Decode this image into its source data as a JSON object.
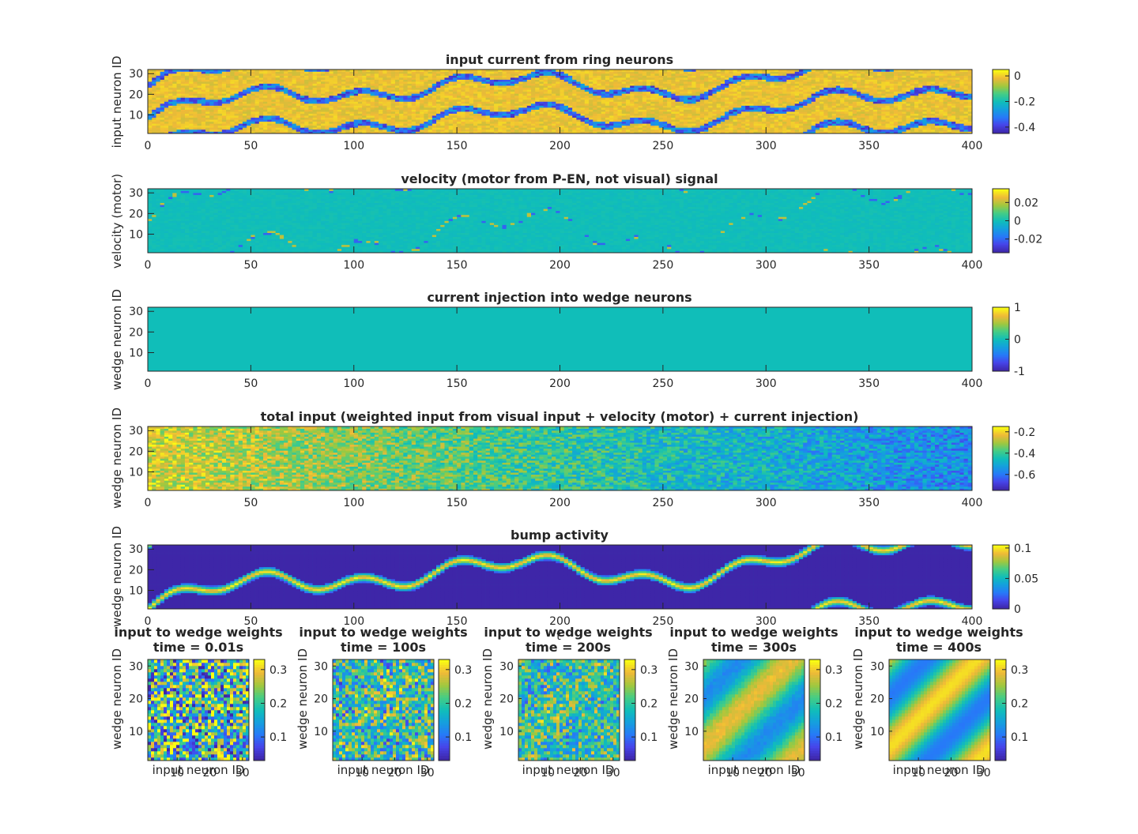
{
  "figure": {
    "ticks_x_long": [
      "0",
      "50",
      "100",
      "150",
      "200",
      "250",
      "300",
      "350",
      "400"
    ],
    "ticks_y_long": [
      "10",
      "20",
      "30"
    ],
    "ticks_small": [
      "10",
      "20",
      "30"
    ],
    "stray_label": "t"
  },
  "chart_data": [
    {
      "type": "heatmap",
      "title": "input current from ring neurons",
      "ylabel": "input neuron ID",
      "xlim": [
        0,
        400
      ],
      "ylim": [
        1,
        32
      ],
      "colorbar": {
        "ticks": [
          "0",
          "-0.2",
          "-0.4"
        ],
        "tick_values": [
          0,
          -0.2,
          -0.4
        ],
        "range": [
          -0.45,
          0.05
        ]
      },
      "pattern": "stripes",
      "low_color": "#3a4fe0",
      "high_color": "#f2c423"
    },
    {
      "type": "heatmap",
      "title": "velocity (motor from P-EN, not visual) signal",
      "ylabel": "velocity (motor)",
      "xlim": [
        0,
        400
      ],
      "ylim": [
        1,
        32
      ],
      "colorbar": {
        "ticks": [
          "0.02",
          "0",
          "-0.02"
        ],
        "tick_values": [
          0.02,
          0,
          -0.02
        ],
        "range": [
          -0.035,
          0.035
        ]
      },
      "pattern": "sparse",
      "base_color": "#12bcbc"
    },
    {
      "type": "heatmap",
      "title": "current injection into wedge neurons",
      "ylabel": "wedge neuron ID",
      "xlim": [
        0,
        400
      ],
      "ylim": [
        1,
        32
      ],
      "colorbar": {
        "ticks": [
          "1",
          "0",
          "-1"
        ],
        "tick_values": [
          1,
          0,
          -1
        ],
        "range": [
          -1,
          1
        ]
      },
      "pattern": "uniform",
      "base_color": "#13bcb8"
    },
    {
      "type": "heatmap",
      "title": "total input (weighted input from visual input + velocity (motor) + current injection)",
      "ylabel": "wedge neuron ID",
      "xlim": [
        0,
        400
      ],
      "ylim": [
        1,
        32
      ],
      "colorbar": {
        "ticks": [
          "-0.2",
          "-0.4",
          "-0.6"
        ],
        "tick_values": [
          -0.2,
          -0.4,
          -0.6
        ],
        "range": [
          -0.75,
          -0.15
        ]
      },
      "pattern": "noise-gradient"
    },
    {
      "type": "heatmap",
      "title": "bump activity",
      "ylabel": "wedge neuron ID",
      "xlim": [
        0,
        400
      ],
      "ylim": [
        1,
        32
      ],
      "colorbar": {
        "ticks": [
          "0.1",
          "0.05",
          "0"
        ],
        "tick_values": [
          0.1,
          0.05,
          0
        ],
        "range": [
          0,
          0.105
        ]
      },
      "pattern": "bump",
      "background_color": "#3d2a9e"
    },
    {
      "type": "heatmap",
      "title": "input to wedge weights",
      "subtitle": "time = 0.01s",
      "xlabel": "input neuron ID",
      "ylabel": "wedge neuron ID",
      "xlim": [
        1,
        32
      ],
      "ylim": [
        1,
        32
      ],
      "colorbar": {
        "ticks": [
          "0.3",
          "0.2",
          "0.1"
        ],
        "tick_values": [
          0.3,
          0.2,
          0.1
        ],
        "range": [
          0.03,
          0.33
        ]
      },
      "structure": 0.0,
      "noise": 1.0
    },
    {
      "type": "heatmap",
      "title": "input to wedge weights",
      "subtitle": "time = 100s",
      "xlabel": "input neuron ID",
      "ylabel": "wedge neuron ID",
      "xlim": [
        1,
        32
      ],
      "ylim": [
        1,
        32
      ],
      "colorbar": {
        "ticks": [
          "0.3",
          "0.2",
          "0.1"
        ],
        "tick_values": [
          0.3,
          0.2,
          0.1
        ],
        "range": [
          0.03,
          0.33
        ]
      },
      "structure": 0.1,
      "noise": 0.7
    },
    {
      "type": "heatmap",
      "title": "input to wedge weights",
      "subtitle": "time = 200s",
      "xlabel": "input neuron ID",
      "ylabel": "wedge neuron ID",
      "xlim": [
        1,
        32
      ],
      "ylim": [
        1,
        32
      ],
      "colorbar": {
        "ticks": [
          "0.3",
          "0.2",
          "0.1"
        ],
        "tick_values": [
          0.3,
          0.2,
          0.1
        ],
        "range": [
          0.03,
          0.33
        ]
      },
      "structure": 0.15,
      "noise": 0.6
    },
    {
      "type": "heatmap",
      "title": "input to wedge weights",
      "subtitle": "time = 300s",
      "xlabel": "input neuron ID",
      "ylabel": "wedge neuron ID",
      "xlim": [
        1,
        32
      ],
      "ylim": [
        1,
        32
      ],
      "colorbar": {
        "ticks": [
          "0.3",
          "0.2",
          "0.1"
        ],
        "tick_values": [
          0.3,
          0.2,
          0.1
        ],
        "range": [
          0.03,
          0.33
        ]
      },
      "structure": 0.8,
      "noise": 0.2
    },
    {
      "type": "heatmap",
      "title": "input to wedge weights",
      "subtitle": "time = 400s",
      "xlabel": "input neuron ID",
      "ylabel": "wedge neuron ID",
      "xlim": [
        1,
        32
      ],
      "ylim": [
        1,
        32
      ],
      "colorbar": {
        "ticks": [
          "0.3",
          "0.2",
          "0.1"
        ],
        "tick_values": [
          0.3,
          0.2,
          0.1
        ],
        "range": [
          0.03,
          0.33
        ]
      },
      "structure": 1.0,
      "noise": 0.05
    }
  ]
}
